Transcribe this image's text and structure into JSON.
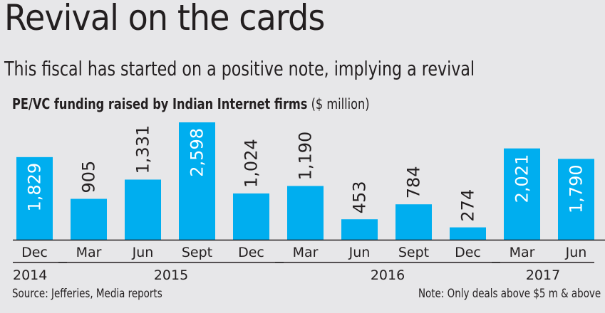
{
  "title": "Revival on the cards",
  "subtitle": "This fiscal has started on a positive note, implying a revival",
  "chart_data": {
    "type": "bar",
    "title": "PE/VC funding raised by Indian Internet firms",
    "unit": "($ million)",
    "categories": [
      "Dec",
      "Mar",
      "Jun",
      "Sept",
      "Dec",
      "Mar",
      "Jun",
      "Sept",
      "Dec",
      "Mar",
      "Jun"
    ],
    "years": [
      {
        "label": "2014",
        "start": 0,
        "end": 0
      },
      {
        "label": "2015",
        "start": 1,
        "end": 4
      },
      {
        "label": "2016",
        "start": 5,
        "end": 8
      },
      {
        "label": "2017",
        "start": 9,
        "end": 10
      }
    ],
    "values": [
      1829,
      905,
      1331,
      2598,
      1024,
      1190,
      453,
      784,
      274,
      2021,
      1790
    ],
    "value_labels": [
      "1,829",
      "905",
      "1,331",
      "2,598",
      "1,024",
      "1,190",
      "453",
      "784",
      "274",
      "2,021",
      "1,790"
    ],
    "ylim": [
      0,
      2598
    ],
    "bar_color": "#00aeef"
  },
  "source": "Source: Jefferies, Media reports",
  "note": "Note: Only deals above $5 m & above"
}
